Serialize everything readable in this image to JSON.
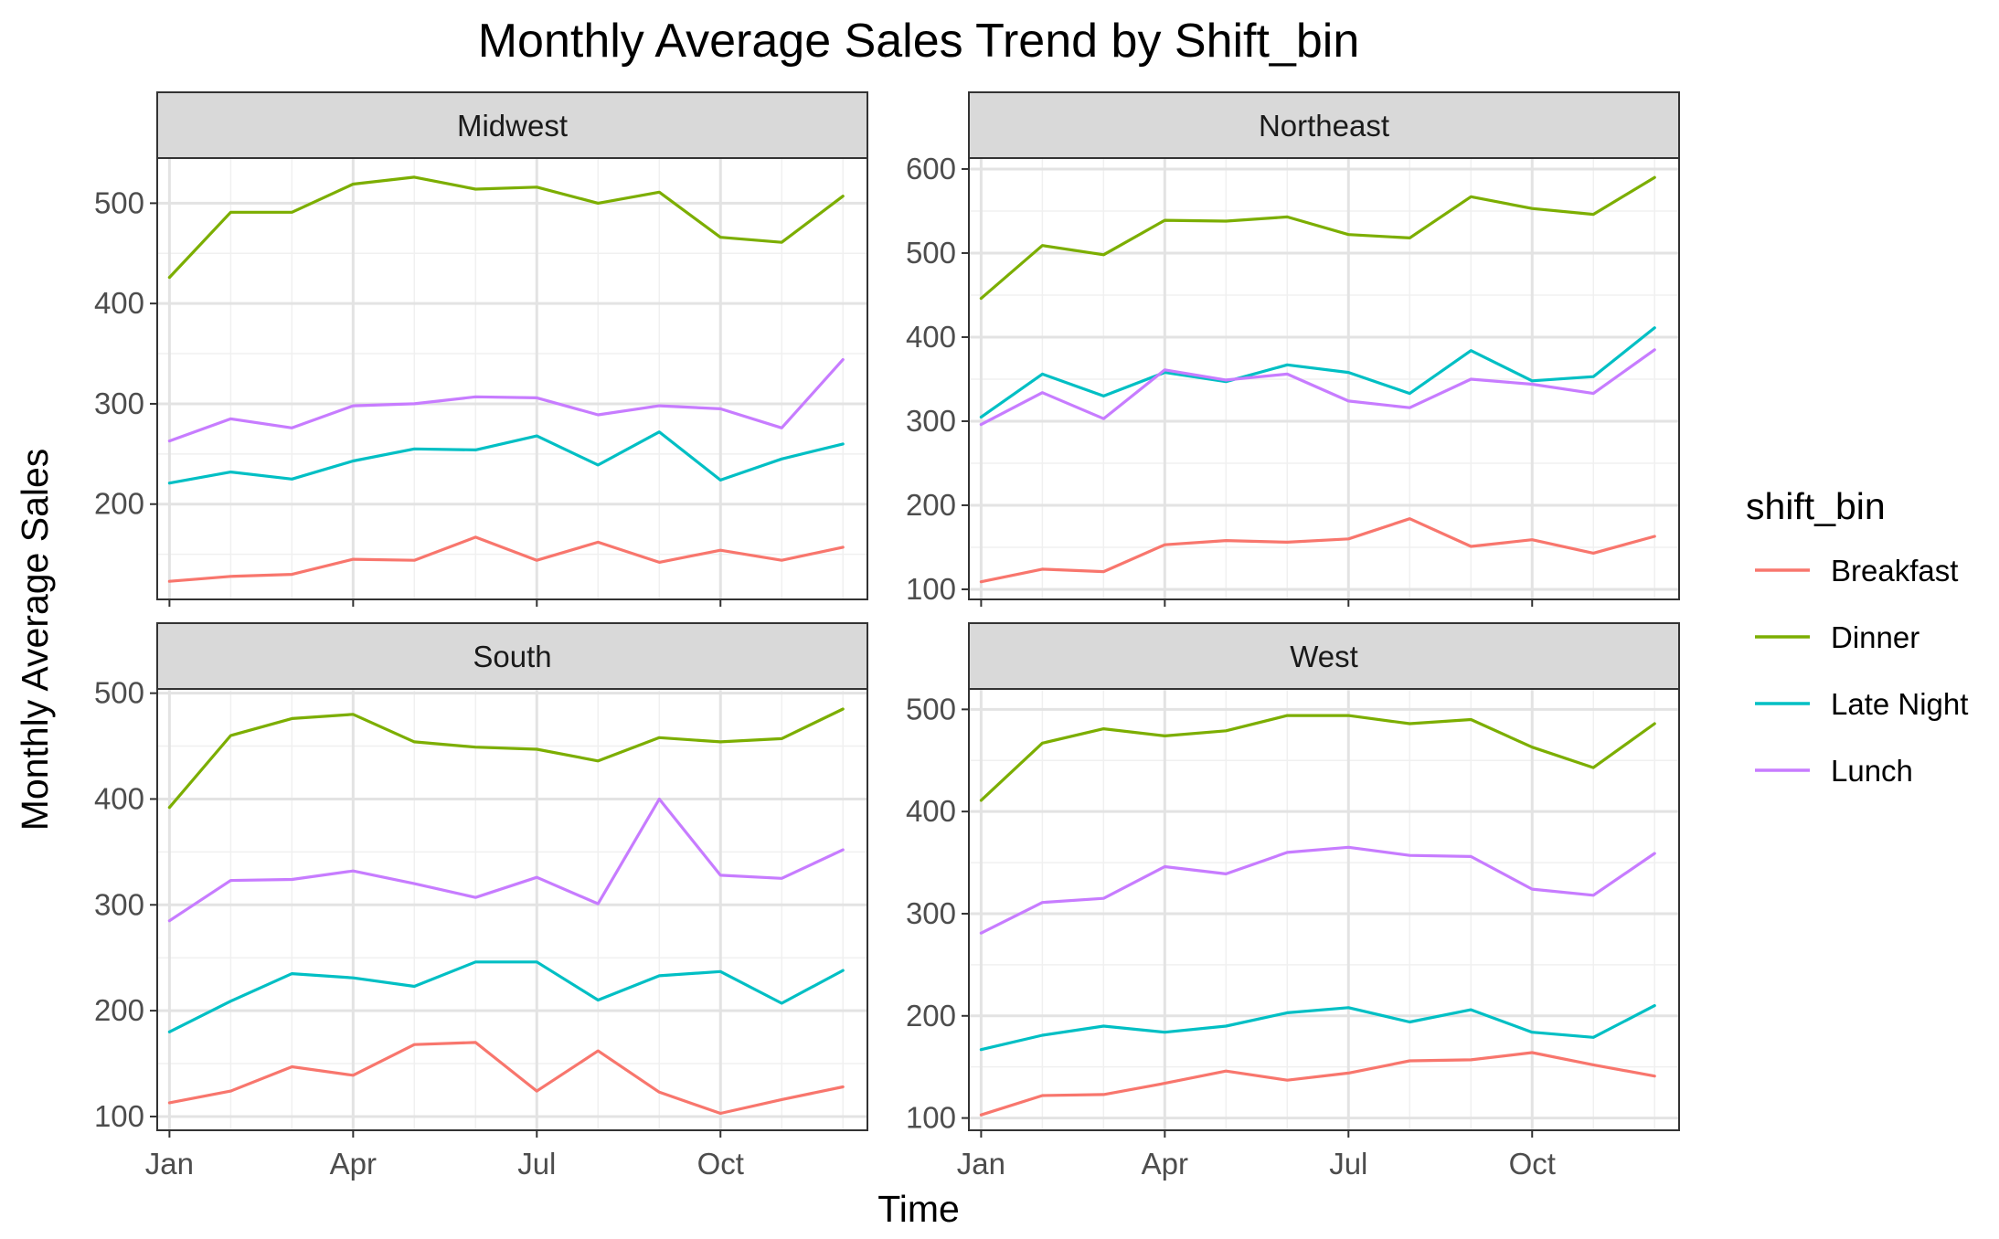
{
  "chart_data": {
    "type": "line",
    "title": "Monthly Average Sales Trend by Shift_bin",
    "xlabel": "Time",
    "ylabel": "Monthly Average Sales",
    "x_tick_labels": [
      "Jan",
      "Apr",
      "Jul",
      "Oct"
    ],
    "x_tick_months": [
      1,
      4,
      7,
      10
    ],
    "x": [
      "Jan",
      "Feb",
      "Mar",
      "Apr",
      "May",
      "Jun",
      "Jul",
      "Aug",
      "Sep",
      "Oct",
      "Nov",
      "Dec"
    ],
    "xlim": [
      0.8,
      12.4
    ],
    "grid": true,
    "legend": {
      "title": "shift_bin",
      "position": "right",
      "entries": [
        {
          "name": "Breakfast",
          "color": "#F8766D"
        },
        {
          "name": "Dinner",
          "color": "#7CAE00"
        },
        {
          "name": "Late Night",
          "color": "#00BFC4"
        },
        {
          "name": "Lunch",
          "color": "#C77CFF"
        }
      ]
    },
    "panels": [
      {
        "name": "Midwest",
        "ylim": [
          105,
          545
        ],
        "yticks": [
          200,
          300,
          400,
          500
        ],
        "series": [
          {
            "name": "Breakfast",
            "values": [
              123,
              128,
              130,
              145,
              144,
              167,
              144,
              162,
              142,
              154,
              144,
              157
            ]
          },
          {
            "name": "Dinner",
            "values": [
              426,
              491,
              491,
              519,
              526,
              514,
              516,
              500,
              511,
              466,
              461,
              507
            ]
          },
          {
            "name": "Late Night",
            "values": [
              221,
              232,
              225,
              243,
              255,
              254,
              268,
              239,
              272,
              224,
              245,
              260
            ]
          },
          {
            "name": "Lunch",
            "values": [
              263,
              285,
              276,
              298,
              300,
              307,
              306,
              289,
              298,
              295,
              276,
              344
            ]
          }
        ]
      },
      {
        "name": "Northeast",
        "ylim": [
          88,
          613
        ],
        "yticks": [
          100,
          200,
          300,
          400,
          500,
          600
        ],
        "series": [
          {
            "name": "Breakfast",
            "values": [
              109,
              124,
              121,
              153,
              158,
              156,
              160,
              184,
              151,
              159,
              143,
              163
            ]
          },
          {
            "name": "Dinner",
            "values": [
              446,
              509,
              498,
              539,
              538,
              543,
              522,
              518,
              567,
              553,
              546,
              590
            ]
          },
          {
            "name": "Late Night",
            "values": [
              305,
              356,
              330,
              358,
              347,
              367,
              358,
              333,
              384,
              348,
              353,
              411
            ]
          },
          {
            "name": "Lunch",
            "values": [
              296,
              334,
              303,
              361,
              349,
              356,
              324,
              316,
              350,
              344,
              333,
              385
            ]
          }
        ]
      },
      {
        "name": "South",
        "ylim": [
          87,
          504
        ],
        "yticks": [
          100,
          200,
          300,
          400,
          500
        ],
        "series": [
          {
            "name": "Breakfast",
            "values": [
              113,
              124,
              147,
              139,
              168,
              170,
              124,
              162,
              123,
              103,
              116,
              128
            ]
          },
          {
            "name": "Dinner",
            "values": [
              392,
              460,
              476,
              480,
              454,
              449,
              447,
              436,
              458,
              454,
              457,
              485
            ]
          },
          {
            "name": "Late Night",
            "values": [
              180,
              209,
              235,
              231,
              223,
              246,
              246,
              210,
              233,
              237,
              207,
              238
            ]
          },
          {
            "name": "Lunch",
            "values": [
              285,
              323,
              324,
              332,
              320,
              307,
              326,
              301,
              400,
              328,
              325,
              352
            ]
          }
        ]
      },
      {
        "name": "West",
        "ylim": [
          88,
          520
        ],
        "yticks": [
          100,
          200,
          300,
          400,
          500
        ],
        "series": [
          {
            "name": "Breakfast",
            "values": [
              103,
              122,
              123,
              134,
              146,
              137,
              144,
              156,
              157,
              164,
              152,
              141
            ]
          },
          {
            "name": "Dinner",
            "values": [
              411,
              467,
              481,
              474,
              479,
              494,
              494,
              486,
              490,
              463,
              443,
              486
            ]
          },
          {
            "name": "Late Night",
            "values": [
              167,
              181,
              190,
              184,
              190,
              203,
              208,
              194,
              206,
              184,
              179,
              210
            ]
          },
          {
            "name": "Lunch",
            "values": [
              281,
              311,
              315,
              346,
              339,
              360,
              365,
              357,
              356,
              324,
              318,
              359
            ]
          }
        ]
      }
    ]
  }
}
